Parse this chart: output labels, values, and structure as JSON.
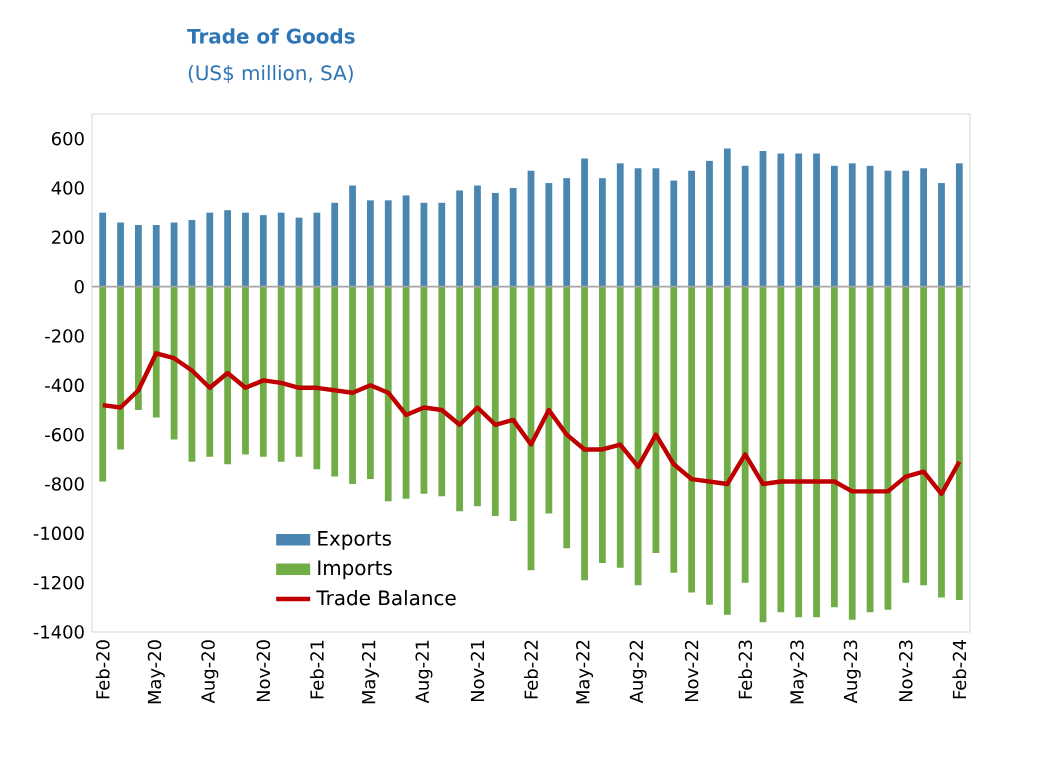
{
  "chart_data": {
    "type": "bar",
    "title": "Trade of Goods",
    "subtitle": "(US$ million, SA)",
    "categories": [
      "Feb-20",
      null,
      null,
      "May-20",
      null,
      null,
      "Aug-20",
      null,
      null,
      "Nov-20",
      null,
      null,
      "Feb-21",
      null,
      null,
      "May-21",
      null,
      null,
      "Aug-21",
      null,
      null,
      "Nov-21",
      null,
      null,
      "Feb-22",
      null,
      null,
      "May-22",
      null,
      null,
      "Aug-22",
      null,
      null,
      "Nov-22",
      null,
      null,
      "Feb-23",
      null,
      null,
      "May-23",
      null,
      null,
      "Aug-23",
      null,
      null,
      "Nov-23",
      null,
      null,
      "Feb-24"
    ],
    "series": [
      {
        "name": "Exports",
        "color": "#4a86b0",
        "values": [
          300,
          260,
          250,
          250,
          260,
          270,
          300,
          310,
          300,
          290,
          300,
          280,
          300,
          340,
          410,
          350,
          350,
          370,
          340,
          340,
          390,
          410,
          380,
          400,
          470,
          420,
          440,
          520,
          440,
          500,
          480,
          480,
          430,
          470,
          510,
          560,
          490,
          550,
          540,
          540,
          540,
          490,
          500,
          490,
          470,
          470,
          480,
          420,
          500
        ]
      },
      {
        "name": "Imports",
        "color": "#70ad47",
        "values": [
          -790,
          -660,
          -500,
          -530,
          -620,
          -710,
          -690,
          -720,
          -680,
          -690,
          -710,
          -690,
          -740,
          -770,
          -800,
          -780,
          -870,
          -860,
          -840,
          -850,
          -910,
          -890,
          -930,
          -950,
          -1150,
          -920,
          -1060,
          -1190,
          -1120,
          -1140,
          -1210,
          -1080,
          -1160,
          -1240,
          -1290,
          -1330,
          -1200,
          -1360,
          -1320,
          -1340,
          -1340,
          -1300,
          -1350,
          -1320,
          -1310,
          -1200,
          -1210,
          -1260,
          -1270
        ]
      },
      {
        "name": "Trade Balance",
        "type": "line",
        "color": "#c00000",
        "values": [
          -480,
          -490,
          -420,
          -270,
          -290,
          -340,
          -410,
          -350,
          -410,
          -380,
          -390,
          -410,
          -410,
          -420,
          -430,
          -400,
          -430,
          -520,
          -490,
          -500,
          -560,
          -490,
          -560,
          -540,
          -640,
          -500,
          -600,
          -660,
          -660,
          -640,
          -730,
          -600,
          -720,
          -780,
          -790,
          -800,
          -680,
          -800,
          -790,
          -790,
          -790,
          -790,
          -830,
          -830,
          -830,
          -770,
          -750,
          -840,
          -710
        ]
      }
    ],
    "stacked": true,
    "ylim": [
      -1400,
      700
    ],
    "yticks": [
      -1400,
      -1200,
      -1000,
      -800,
      -600,
      -400,
      -200,
      0,
      200,
      400,
      600
    ],
    "ref_lines": [
      {
        "axis": "y",
        "value": 0,
        "color": "#a6a6a6"
      }
    ],
    "legend": "bottom left"
  }
}
